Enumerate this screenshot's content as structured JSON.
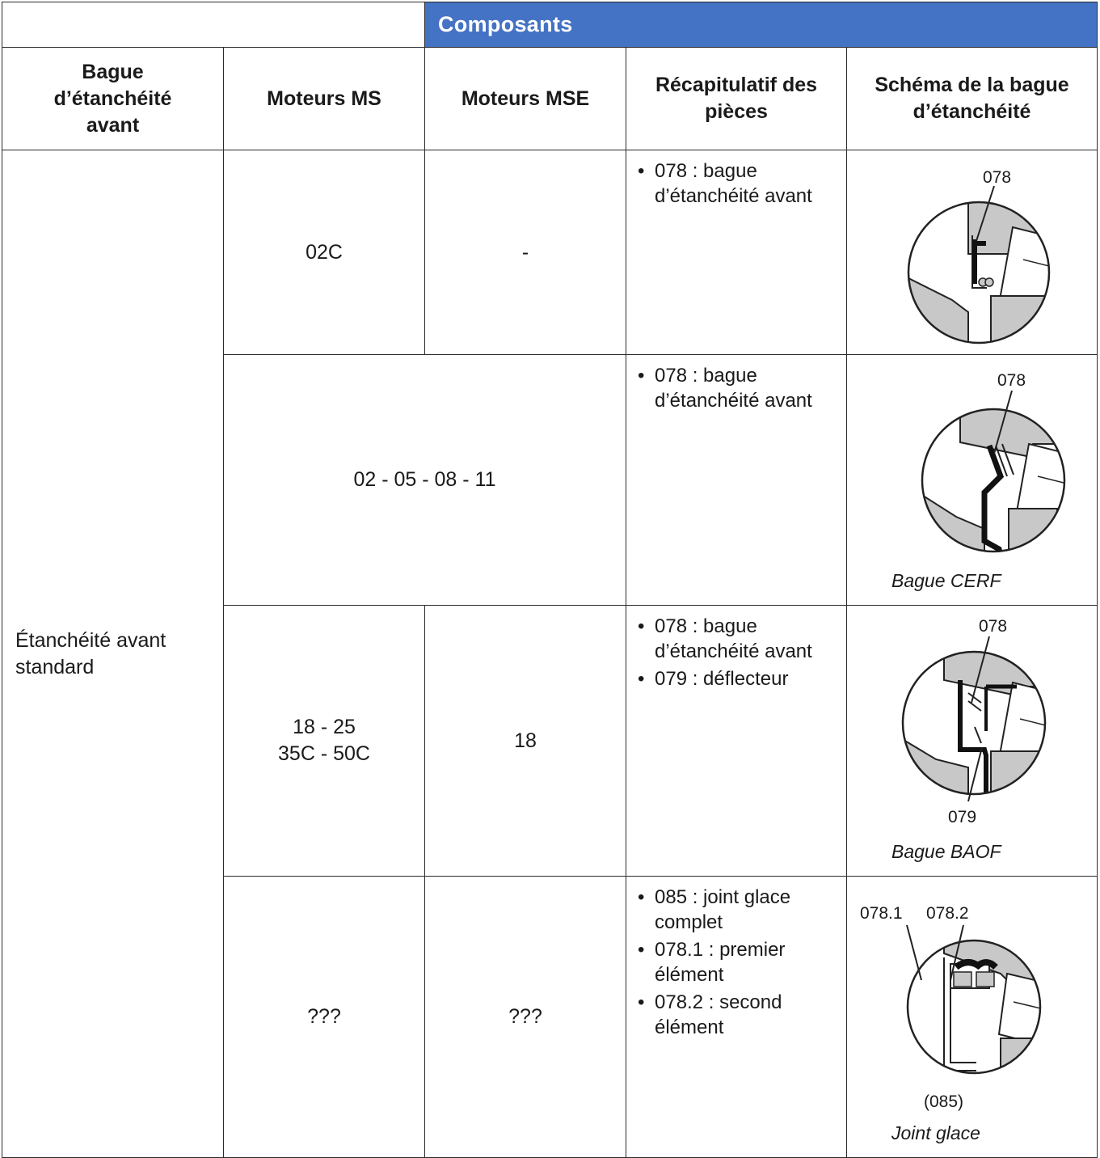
{
  "banner": "Composants",
  "headers": {
    "col1": [
      "Bague",
      "d’étanchéité",
      "avant"
    ],
    "col2": "Moteurs MS",
    "col3": "Moteurs MSE",
    "col4": [
      "Récapitulatif des",
      "pièces"
    ],
    "col5": [
      "Schéma de la bague",
      "d’étanchéité"
    ]
  },
  "group_label": [
    "Étanchéité avant",
    "standard"
  ],
  "rows": [
    {
      "ms": [
        "02C"
      ],
      "mse": "-",
      "parts": [
        "078 : bague d’étanchéité avant"
      ],
      "labels": [
        "078"
      ],
      "caption": ""
    },
    {
      "merged": "02 - 05 - 08 - 11",
      "parts": [
        "078 : bague d’étanchéité avant"
      ],
      "labels": [
        "078"
      ],
      "caption": "Bague CERF"
    },
    {
      "ms": [
        "18 - 25",
        "35C - 50C"
      ],
      "mse": "18",
      "parts": [
        "078 : bague d’étanchéité avant",
        "079 : déflecteur"
      ],
      "labels": [
        "078",
        "079"
      ],
      "caption": "Bague BAOF"
    },
    {
      "ms": [
        "???"
      ],
      "mse": "???",
      "parts": [
        "085 : joint glace complet",
        "078.1 : premier élément",
        "078.2 : second élément"
      ],
      "labels": [
        "078.1",
        "078.2",
        "(085)"
      ],
      "caption": "Joint glace"
    }
  ],
  "bullet_char": "•",
  "colors": {
    "banner_bg": "#4472c4",
    "banner_text": "#ffffff",
    "grid": "#2b2b2b",
    "part_fill": "#c8c8c8",
    "seal": "#111111"
  },
  "icons": [
    "seal-schematic-circle"
  ]
}
